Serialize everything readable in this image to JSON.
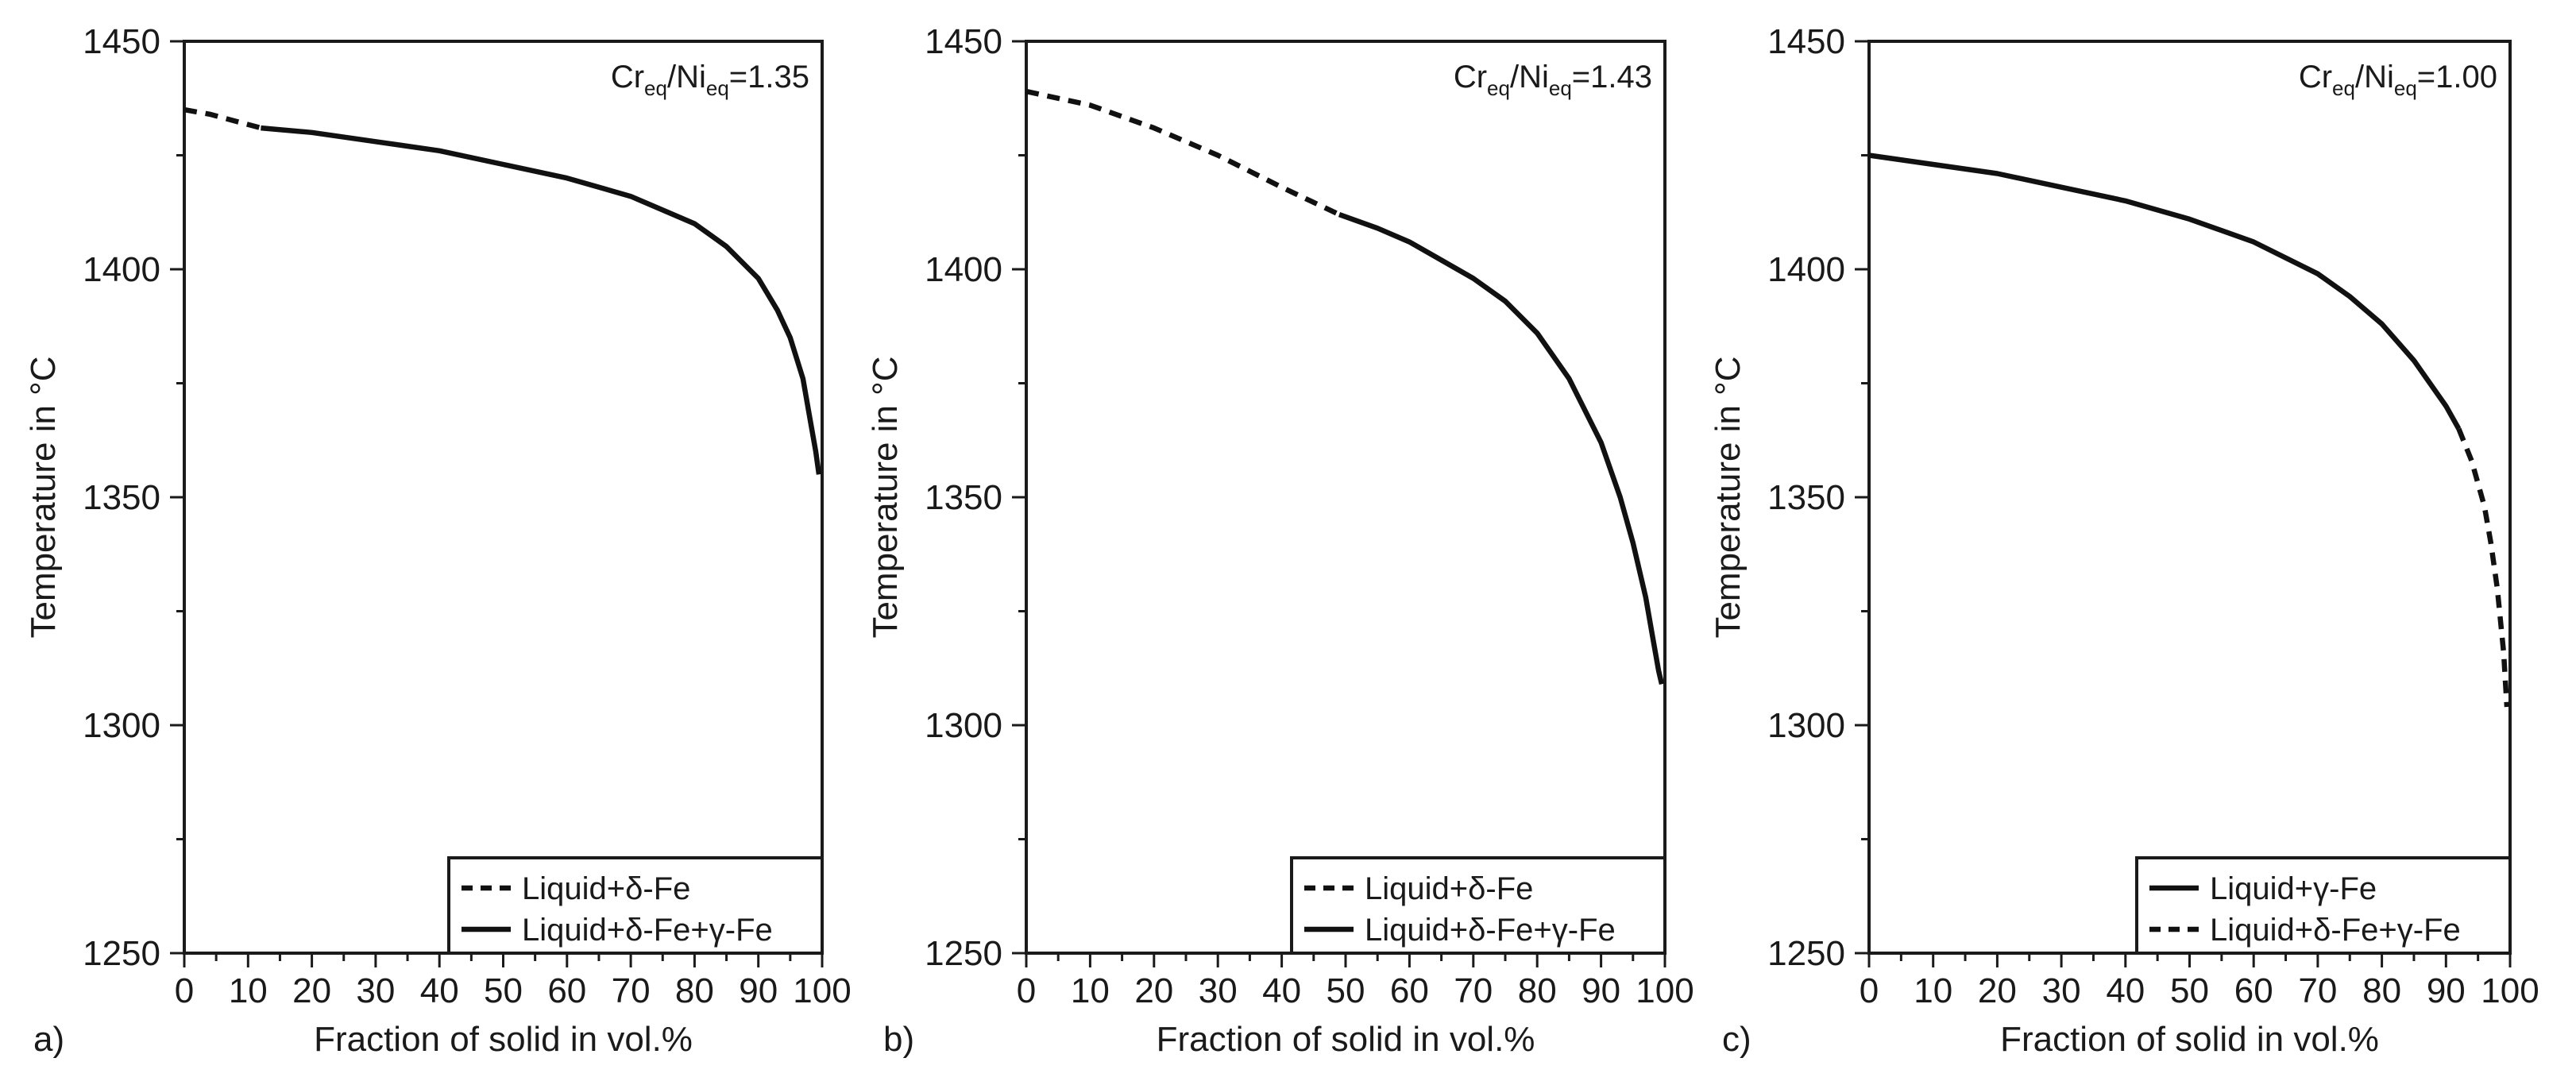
{
  "chart_data": [
    {
      "type": "line",
      "panel_label": "a)",
      "annotation": {
        "base1": "Cr",
        "sub1": "eq",
        "sep": "/Ni",
        "sub2": "eq",
        "value": "=1.35"
      },
      "xlabel": "Fraction of solid in vol.%",
      "ylabel": "Temperature in °C",
      "xlim": [
        0,
        100
      ],
      "ylim": [
        1250,
        1450
      ],
      "xticks": [
        0,
        10,
        20,
        30,
        40,
        50,
        60,
        70,
        80,
        90,
        100
      ],
      "yticks": [
        1250,
        1300,
        1350,
        1400,
        1450
      ],
      "legend_position": "bottom-right",
      "series": [
        {
          "name": "Liquid+δ-Fe",
          "style": "dashed",
          "x": [
            0,
            4,
            8,
            12
          ],
          "y": [
            1435,
            1434,
            1432.5,
            1431
          ]
        },
        {
          "name": "Liquid+δ-Fe+γ-Fe",
          "style": "solid",
          "x": [
            12,
            20,
            30,
            40,
            50,
            60,
            70,
            80,
            85,
            90,
            93,
            95,
            97,
            98,
            99,
            99.5
          ],
          "y": [
            1431,
            1430,
            1428,
            1426,
            1423,
            1420,
            1416,
            1410,
            1405,
            1398,
            1391,
            1385,
            1376,
            1368,
            1360,
            1355
          ]
        }
      ]
    },
    {
      "type": "line",
      "panel_label": "b)",
      "annotation": {
        "base1": "Cr",
        "sub1": "eq",
        "sep": "/Ni",
        "sub2": "eq",
        "value": "=1.43"
      },
      "xlabel": "Fraction of solid in vol.%",
      "ylabel": "Temperature in °C",
      "xlim": [
        0,
        100
      ],
      "ylim": [
        1250,
        1450
      ],
      "xticks": [
        0,
        10,
        20,
        30,
        40,
        50,
        60,
        70,
        80,
        90,
        100
      ],
      "yticks": [
        1250,
        1300,
        1350,
        1400,
        1450
      ],
      "legend_position": "bottom-right",
      "series": [
        {
          "name": "Liquid+δ-Fe",
          "style": "dashed",
          "x": [
            0,
            10,
            20,
            30,
            40,
            49
          ],
          "y": [
            1439,
            1436,
            1431,
            1425,
            1418,
            1412
          ]
        },
        {
          "name": "Liquid+δ-Fe+γ-Fe",
          "style": "solid",
          "x": [
            49,
            55,
            60,
            65,
            70,
            75,
            80,
            85,
            90,
            93,
            95,
            97,
            98,
            99,
            99.5
          ],
          "y": [
            1412,
            1409,
            1406,
            1402,
            1398,
            1393,
            1386,
            1376,
            1362,
            1350,
            1340,
            1328,
            1320,
            1312,
            1309
          ]
        }
      ]
    },
    {
      "type": "line",
      "panel_label": "c)",
      "annotation": {
        "base1": "Cr",
        "sub1": "eq",
        "sep": "/Ni",
        "sub2": "eq",
        "value": "=1.00"
      },
      "xlabel": "Fraction of solid in vol.%",
      "ylabel": "Temperature in °C",
      "xlim": [
        0,
        100
      ],
      "ylim": [
        1250,
        1450
      ],
      "xticks": [
        0,
        10,
        20,
        30,
        40,
        50,
        60,
        70,
        80,
        90,
        100
      ],
      "yticks": [
        1250,
        1300,
        1350,
        1400,
        1450
      ],
      "legend_position": "bottom-right",
      "series": [
        {
          "name": "Liquid+γ-Fe",
          "style": "solid",
          "x": [
            0,
            10,
            20,
            30,
            40,
            50,
            60,
            70,
            75,
            80,
            85,
            90,
            92
          ],
          "y": [
            1425,
            1423,
            1421,
            1418,
            1415,
            1411,
            1406,
            1399,
            1394,
            1388,
            1380,
            1370,
            1365
          ]
        },
        {
          "name": "Liquid+δ-Fe+γ-Fe",
          "style": "dashed",
          "x": [
            92,
            94,
            96,
            97,
            98,
            99,
            99.5
          ],
          "y": [
            1365,
            1358,
            1348,
            1340,
            1330,
            1316,
            1304
          ]
        }
      ]
    }
  ]
}
